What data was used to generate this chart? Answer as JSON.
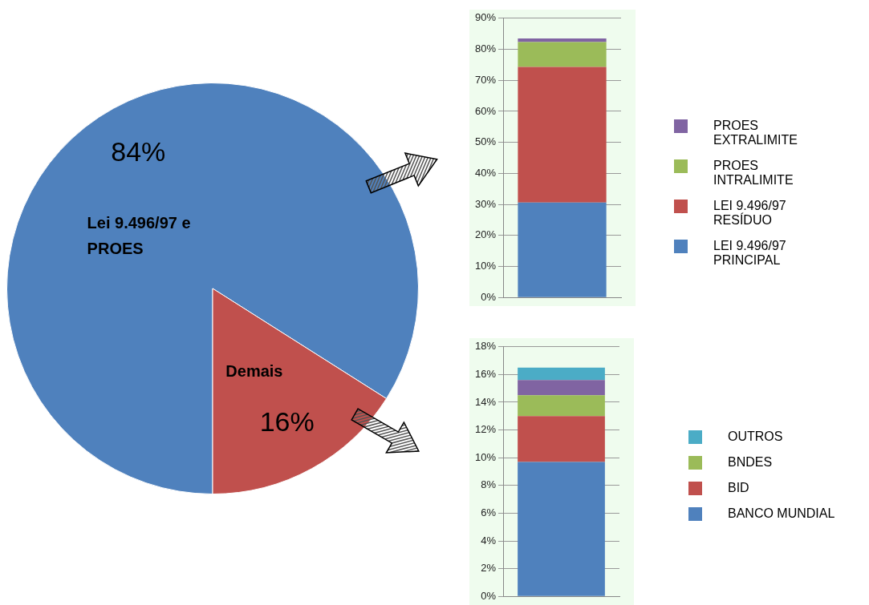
{
  "chart_data": [
    {
      "type": "pie",
      "categories": [
        "Lei 9.496/97 e PROES",
        "Demais"
      ],
      "values": [
        84,
        16
      ],
      "colors": [
        "#4f81bd",
        "#c0504d"
      ],
      "value_labels": [
        "84%",
        "16%"
      ]
    },
    {
      "type": "bar",
      "stacked": true,
      "categories": [
        null
      ],
      "legend": "right",
      "grid": "y",
      "tick_labels": "y",
      "series": [
        {
          "name": "LEI 9.496/97 PRINCIPAL",
          "color": "#4f81bd",
          "values": [
            30.6
          ]
        },
        {
          "name": "LEI 9.496/97 RESÍDUO",
          "color": "#c0504d",
          "values": [
            43.7
          ]
        },
        {
          "name": "PROES INTRALIMITE",
          "color": "#9bbb59",
          "values": [
            8.0
          ]
        },
        {
          "name": "PROES EXTRALIMITE",
          "color": "#8064a2",
          "values": [
            1.2
          ]
        }
      ],
      "ylim": [
        0,
        90
      ],
      "yticks": [
        {
          "value": 0,
          "label": "0%"
        },
        {
          "value": 10,
          "label": "10%"
        },
        {
          "value": 20,
          "label": "20%"
        },
        {
          "value": 30,
          "label": "30%"
        },
        {
          "value": 40,
          "label": "40%"
        },
        {
          "value": 50,
          "label": "50%"
        },
        {
          "value": 60,
          "label": "60%"
        },
        {
          "value": 70,
          "label": "70%"
        },
        {
          "value": 80,
          "label": "80%"
        },
        {
          "value": 90,
          "label": "90%"
        }
      ]
    },
    {
      "type": "bar",
      "stacked": true,
      "categories": [
        null
      ],
      "legend": "right",
      "grid": "y",
      "tick_labels": "y",
      "series": [
        {
          "name": "BANCO MUNDIAL",
          "color": "#4f81bd",
          "values": [
            9.7
          ]
        },
        {
          "name": "BID",
          "color": "#c0504d",
          "values": [
            3.3
          ]
        },
        {
          "name": "BNDES",
          "color": "#9bbb59",
          "values": [
            1.5
          ]
        },
        {
          "color": "#8064a2",
          "values": [
            1.1
          ]
        },
        {
          "name": "OUTROS",
          "color": "#4bacc6",
          "values": [
            0.9
          ]
        }
      ],
      "ylim": [
        0,
        18
      ],
      "yticks": [
        {
          "value": 0,
          "label": "0%"
        },
        {
          "value": 2,
          "label": "2%"
        },
        {
          "value": 4,
          "label": "4%"
        },
        {
          "value": 6,
          "label": "6%"
        },
        {
          "value": 8,
          "label": "8%"
        },
        {
          "value": 10,
          "label": "10%"
        },
        {
          "value": 12,
          "label": "12%"
        },
        {
          "value": 14,
          "label": "14%"
        },
        {
          "value": 16,
          "label": "16%"
        },
        {
          "value": 18,
          "label": "18%"
        }
      ]
    }
  ]
}
